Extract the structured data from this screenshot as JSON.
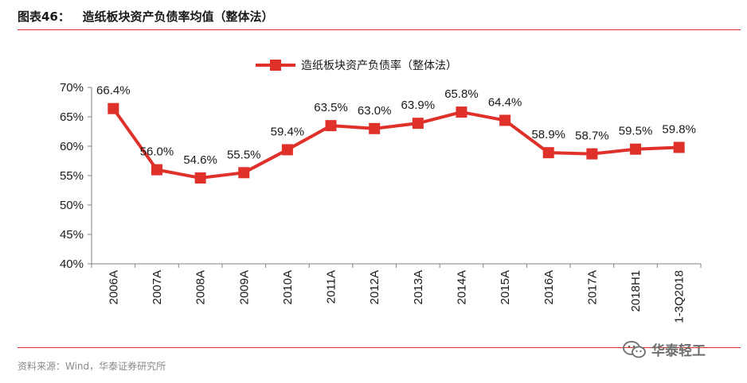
{
  "header": {
    "figure_no": "图表46：",
    "title": "造纸板块资产负债率均值（整体法）"
  },
  "footer": {
    "source": "资料来源：Wind，华泰证券研究所",
    "brand": "华泰轻工"
  },
  "colors": {
    "series": "#e0302a",
    "rule": "#e0302a"
  },
  "chart_data": {
    "type": "line",
    "title": "",
    "xlabel": "",
    "ylabel": "",
    "ylim": [
      40,
      70
    ],
    "yticks": [
      "40%",
      "45%",
      "50%",
      "55%",
      "60%",
      "65%",
      "70%"
    ],
    "ytick_values": [
      40,
      45,
      50,
      55,
      60,
      65,
      70
    ],
    "categories": [
      "2006A",
      "2007A",
      "2008A",
      "2009A",
      "2010A",
      "2011A",
      "2012A",
      "2013A",
      "2014A",
      "2015A",
      "2016A",
      "2017A",
      "2018H1",
      "1-3Q2018"
    ],
    "series": [
      {
        "name": "造纸板块资产负债率（整体法）",
        "values": [
          66.4,
          56.0,
          54.6,
          55.5,
          59.4,
          63.5,
          63.0,
          63.9,
          65.8,
          64.4,
          58.9,
          58.7,
          59.5,
          59.8
        ],
        "labels": [
          "66.4%",
          "56.0%",
          "54.6%",
          "55.5%",
          "59.4%",
          "63.5%",
          "63.0%",
          "63.9%",
          "65.8%",
          "64.4%",
          "58.9%",
          "58.7%",
          "59.5%",
          "59.8%"
        ]
      }
    ],
    "legend_position": "top-center",
    "grid": false
  }
}
